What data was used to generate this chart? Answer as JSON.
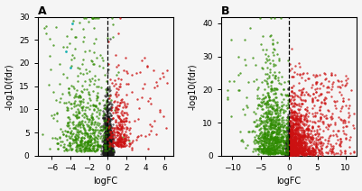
{
  "panel_A": {
    "label": "A",
    "xlim": [
      -7.5,
      7
    ],
    "ylim": [
      0,
      30
    ],
    "xticks": [
      -6,
      -4,
      -2,
      0,
      2,
      4,
      6
    ],
    "yticks": [
      0,
      5,
      10,
      15,
      20,
      25,
      30
    ],
    "xlabel": "logFC",
    "ylabel": "-log10(fdr)",
    "vline_x": 0
  },
  "panel_B": {
    "label": "B",
    "xlim": [
      -12,
      12
    ],
    "ylim": [
      0,
      42
    ],
    "xticks": [
      -10,
      -5,
      0,
      5,
      10
    ],
    "yticks": [
      0,
      10,
      20,
      30,
      40
    ],
    "xlabel": "logFC",
    "ylabel": "-log10(fdr)",
    "vline_x": 0
  },
  "colors": {
    "black": "#1a1a1a",
    "green": "#2e8b00",
    "red": "#cc1111",
    "cyan": "#00aaaa",
    "background": "#f5f5f5"
  },
  "dot_size": 3,
  "dot_alpha": 0.75,
  "figsize": [
    4.01,
    2.12
  ],
  "dpi": 100
}
